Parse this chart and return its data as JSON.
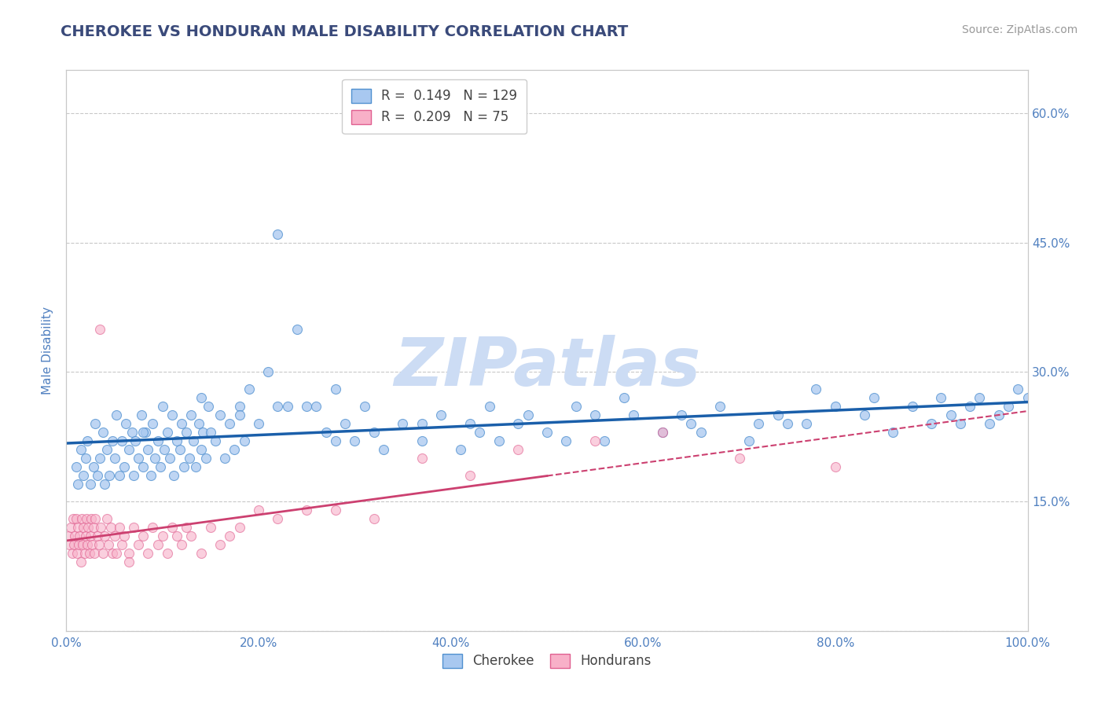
{
  "title": "CHEROKEE VS HONDURAN MALE DISABILITY CORRELATION CHART",
  "source": "Source: ZipAtlas.com",
  "ylabel": "Male Disability",
  "xlim": [
    0,
    100
  ],
  "ylim": [
    0,
    65
  ],
  "yticks": [
    0,
    15,
    30,
    45,
    60
  ],
  "xticks": [
    0,
    20,
    40,
    60,
    80,
    100
  ],
  "xtick_labels": [
    "0.0%",
    "20.0%",
    "40.0%",
    "60.0%",
    "80.0%",
    "100.0%"
  ],
  "ytick_labels": [
    "",
    "15.0%",
    "30.0%",
    "45.0%",
    "60.0%"
  ],
  "cherokee_color": "#a8c8f0",
  "cherokee_edge_color": "#5090d0",
  "honduran_color": "#f8b0c8",
  "honduran_edge_color": "#e06090",
  "cherokee_line_color": "#1a5faa",
  "honduran_line_color": "#cc4070",
  "R_cherokee": 0.149,
  "N_cherokee": 129,
  "R_honduran": 0.209,
  "N_honduran": 75,
  "title_color": "#3a4a7a",
  "source_color": "#999999",
  "watermark": "ZIPatlas",
  "watermark_color": "#ccdcf4",
  "background_color": "#ffffff",
  "grid_color": "#c8c8c8",
  "tick_color": "#5080c0",
  "cherokee_x": [
    1.0,
    1.2,
    1.5,
    1.8,
    2.0,
    2.2,
    2.5,
    2.8,
    3.0,
    3.2,
    3.5,
    3.8,
    4.0,
    4.2,
    4.5,
    4.8,
    5.0,
    5.2,
    5.5,
    5.8,
    6.0,
    6.2,
    6.5,
    6.8,
    7.0,
    7.2,
    7.5,
    7.8,
    8.0,
    8.2,
    8.5,
    8.8,
    9.0,
    9.2,
    9.5,
    9.8,
    10.0,
    10.2,
    10.5,
    10.8,
    11.0,
    11.2,
    11.5,
    11.8,
    12.0,
    12.2,
    12.5,
    12.8,
    13.0,
    13.2,
    13.5,
    13.8,
    14.0,
    14.2,
    14.5,
    14.8,
    15.0,
    15.5,
    16.0,
    16.5,
    17.0,
    17.5,
    18.0,
    18.5,
    19.0,
    20.0,
    21.0,
    22.0,
    23.0,
    24.0,
    25.0,
    26.0,
    27.0,
    28.0,
    29.0,
    30.0,
    31.0,
    32.0,
    33.0,
    35.0,
    37.0,
    39.0,
    41.0,
    43.0,
    45.0,
    47.0,
    50.0,
    53.0,
    56.0,
    59.0,
    62.0,
    65.0,
    68.0,
    71.0,
    74.0,
    77.0,
    80.0,
    83.0,
    86.0,
    88.0,
    90.0,
    91.0,
    92.0,
    93.0,
    95.0,
    97.0,
    98.0,
    99.0,
    100.0,
    37.0,
    52.0,
    66.0,
    78.0,
    42.0,
    28.0,
    18.0,
    8.0,
    14.0,
    48.0,
    72.0,
    84.0,
    94.0,
    96.0,
    55.0,
    44.0,
    58.0,
    64.0,
    75.0,
    22.0
  ],
  "cherokee_y": [
    19,
    17,
    21,
    18,
    20,
    22,
    17,
    19,
    24,
    18,
    20,
    23,
    17,
    21,
    18,
    22,
    20,
    25,
    18,
    22,
    19,
    24,
    21,
    23,
    18,
    22,
    20,
    25,
    19,
    23,
    21,
    18,
    24,
    20,
    22,
    19,
    26,
    21,
    23,
    20,
    25,
    18,
    22,
    21,
    24,
    19,
    23,
    20,
    25,
    22,
    19,
    24,
    21,
    23,
    20,
    26,
    23,
    22,
    25,
    20,
    24,
    21,
    26,
    22,
    28,
    24,
    30,
    26,
    26,
    35,
    26,
    26,
    23,
    22,
    24,
    22,
    26,
    23,
    21,
    24,
    22,
    25,
    21,
    23,
    22,
    24,
    23,
    26,
    22,
    25,
    23,
    24,
    26,
    22,
    25,
    24,
    26,
    25,
    23,
    26,
    24,
    27,
    25,
    24,
    27,
    25,
    26,
    28,
    27,
    24,
    22,
    23,
    28,
    24,
    28,
    25,
    23,
    27,
    25,
    24,
    27,
    26,
    24,
    25,
    26,
    27,
    25,
    24,
    46
  ],
  "honduran_x": [
    0.2,
    0.3,
    0.5,
    0.6,
    0.7,
    0.8,
    0.9,
    1.0,
    1.1,
    1.2,
    1.3,
    1.4,
    1.5,
    1.6,
    1.7,
    1.8,
    1.9,
    2.0,
    2.1,
    2.2,
    2.3,
    2.4,
    2.5,
    2.6,
    2.7,
    2.8,
    2.9,
    3.0,
    3.2,
    3.4,
    3.6,
    3.8,
    4.0,
    4.2,
    4.4,
    4.6,
    4.8,
    5.0,
    5.2,
    5.5,
    5.8,
    6.0,
    6.5,
    7.0,
    7.5,
    8.0,
    8.5,
    9.0,
    9.5,
    10.0,
    10.5,
    11.0,
    11.5,
    12.0,
    12.5,
    13.0,
    14.0,
    15.0,
    16.0,
    17.0,
    18.0,
    20.0,
    22.0,
    25.0,
    28.0,
    32.0,
    37.0,
    42.0,
    47.0,
    55.0,
    62.0,
    70.0,
    80.0,
    3.5,
    6.5
  ],
  "honduran_y": [
    11,
    10,
    12,
    9,
    13,
    10,
    11,
    13,
    9,
    12,
    10,
    11,
    8,
    13,
    10,
    12,
    9,
    11,
    13,
    10,
    12,
    9,
    11,
    13,
    10,
    12,
    9,
    13,
    11,
    10,
    12,
    9,
    11,
    13,
    10,
    12,
    9,
    11,
    9,
    12,
    10,
    11,
    9,
    12,
    10,
    11,
    9,
    12,
    10,
    11,
    9,
    12,
    11,
    10,
    12,
    11,
    9,
    12,
    10,
    11,
    12,
    14,
    13,
    14,
    14,
    13,
    20,
    18,
    21,
    22,
    23,
    20,
    19,
    35,
    8
  ]
}
